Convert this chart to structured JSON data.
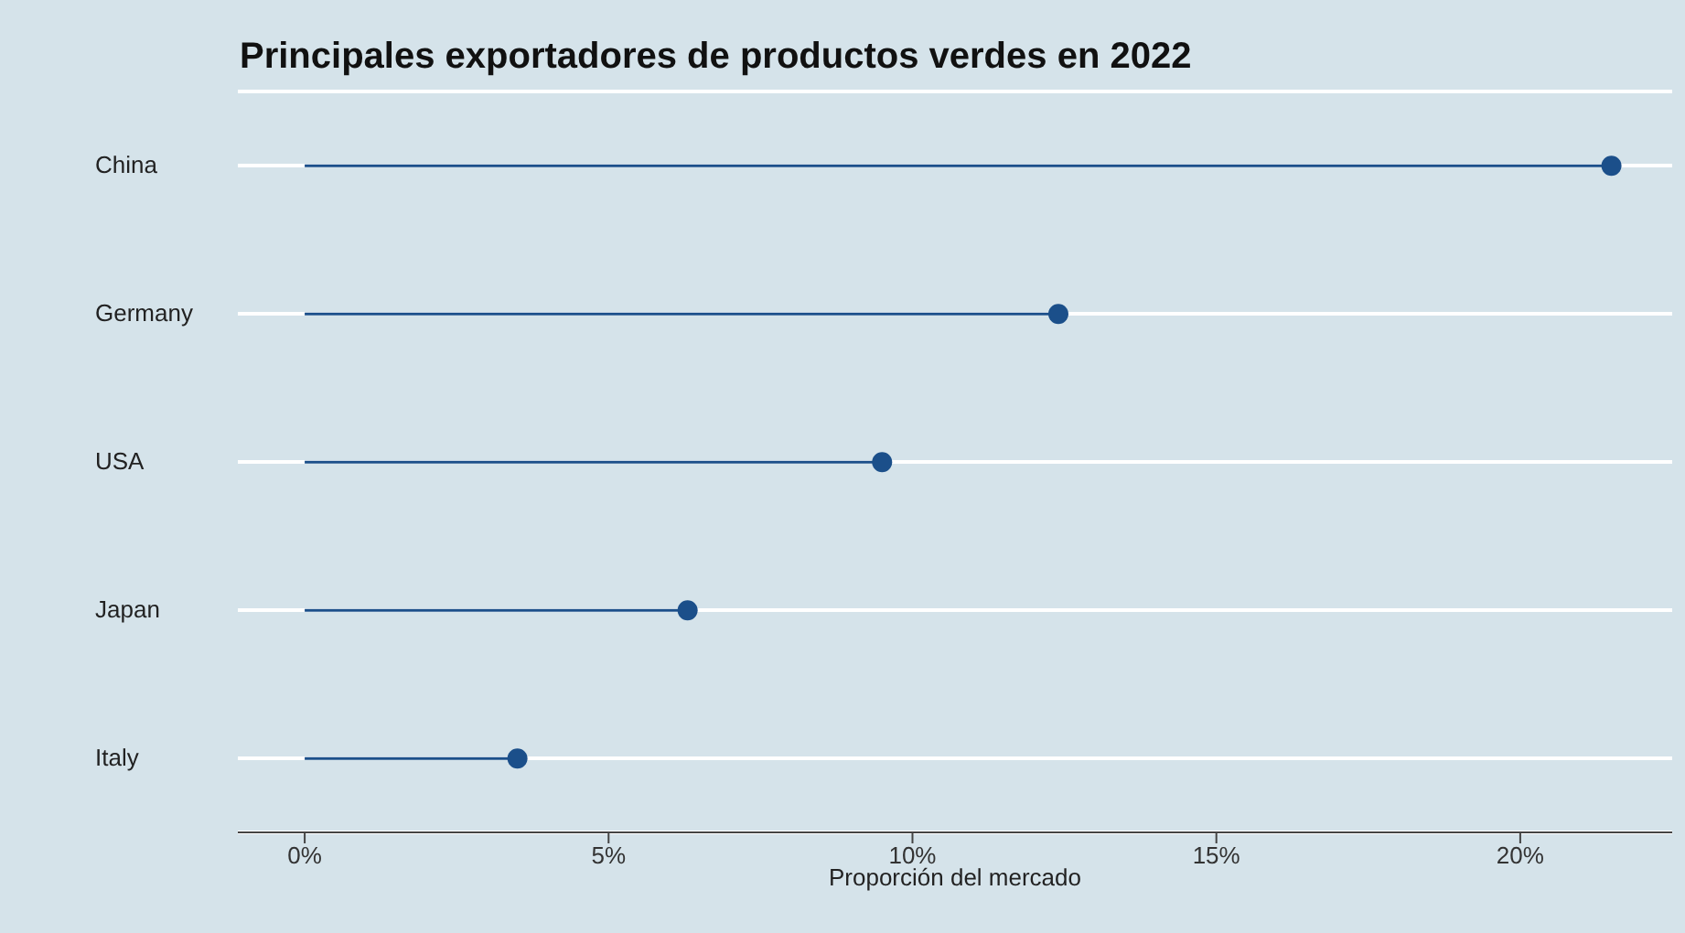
{
  "chart_data": {
    "type": "lollipop",
    "orientation": "horizontal",
    "title": "Principales exportadores de productos verdes en 2022",
    "xlabel": "Proporción del mercado",
    "categories": [
      "China",
      "Germany",
      "USA",
      "Japan",
      "Italy"
    ],
    "values": [
      21.5,
      12.4,
      9.5,
      6.3,
      3.5
    ],
    "color": "#1b4f8a",
    "xlim": [
      -1.1,
      22.5
    ],
    "xticks": [
      {
        "value": 0,
        "label": "0%"
      },
      {
        "value": 5,
        "label": "5%"
      },
      {
        "value": 10,
        "label": "10%"
      },
      {
        "value": 15,
        "label": "15%"
      },
      {
        "value": 20,
        "label": "20%"
      }
    ],
    "grid": "y",
    "marker": "circle"
  }
}
